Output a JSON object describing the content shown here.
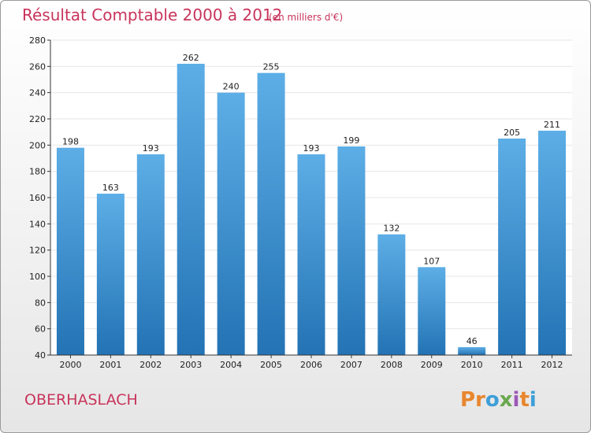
{
  "chart_data": {
    "type": "bar",
    "title": "Résultat Comptable 2000 à 2012",
    "unit_note": "(en milliers d'€)",
    "xlabel": "",
    "ylabel": "",
    "categories": [
      "2000",
      "2001",
      "2002",
      "2003",
      "2004",
      "2005",
      "2006",
      "2007",
      "2008",
      "2009",
      "2010",
      "2011",
      "2012"
    ],
    "values": [
      198,
      163,
      193,
      262,
      240,
      255,
      193,
      199,
      132,
      107,
      46,
      205,
      211
    ],
    "ylim": [
      40,
      280
    ],
    "yticks": [
      40,
      60,
      80,
      100,
      120,
      140,
      160,
      180,
      200,
      220,
      240,
      260,
      280
    ],
    "grid": true,
    "legend": "none"
  },
  "commune": "OBERHASLACH",
  "logo": {
    "text": "Proxiti",
    "letter_colors": [
      "#e8862e",
      "#e8862e",
      "#3d9fd8",
      "#6aa84f",
      "#9b59b6",
      "#e8862e",
      "#3d9fd8"
    ]
  },
  "colors": {
    "bar_top": "#5daee6",
    "bar_bottom": "#2373b5",
    "accent": "#c8345b",
    "grid": "#e6e6e6"
  }
}
